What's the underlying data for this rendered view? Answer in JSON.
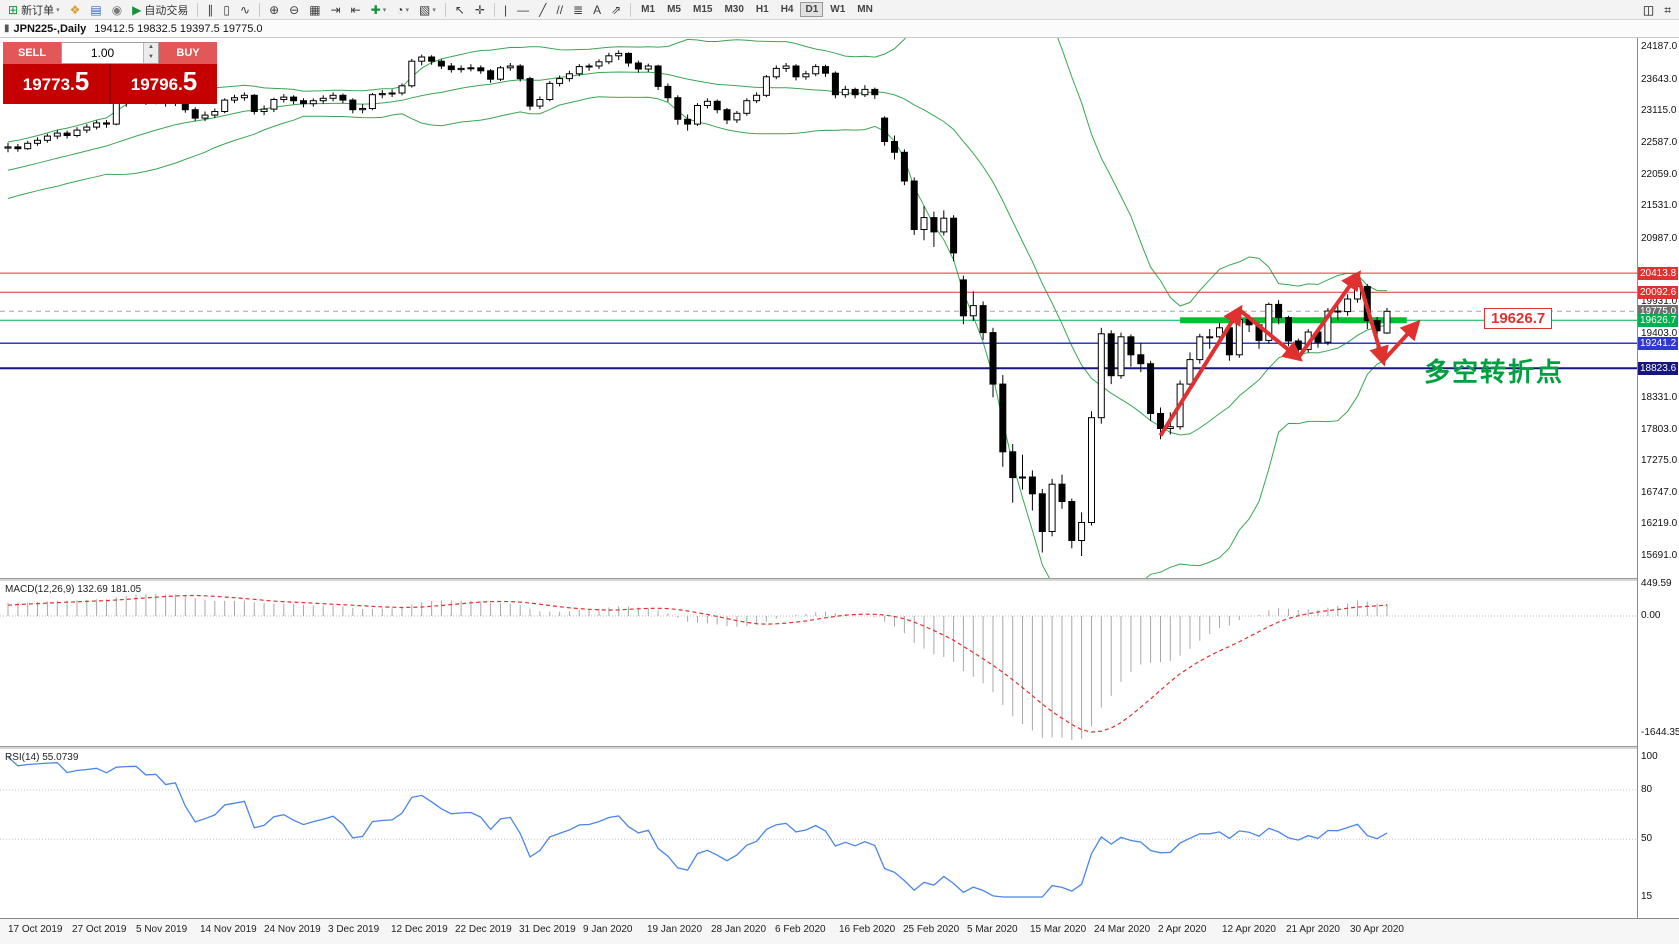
{
  "toolbar": {
    "items": [
      {
        "name": "new-order-button",
        "glyph": "⊞",
        "color": "#18923a",
        "label": "新订单",
        "dropdown": true
      },
      {
        "name": "profile-icon",
        "glyph": "❖",
        "color": "#d89a2b"
      },
      {
        "name": "market-watch-icon",
        "glyph": "▤",
        "color": "#2f66c4"
      },
      {
        "name": "signals-icon",
        "glyph": "◉",
        "color": "#7a7a7a"
      },
      {
        "name": "auto-trading-button",
        "glyph": "▶",
        "color": "#18923a",
        "label": "自动交易"
      },
      {
        "sep": true
      },
      {
        "name": "bar-chart-mode-button",
        "glyph": "∥"
      },
      {
        "name": "candlestick-mode-button",
        "glyph": "▯"
      },
      {
        "name": "line-chart-mode-button",
        "glyph": "∿"
      },
      {
        "sep": true
      },
      {
        "name": "zoom-in-button",
        "glyph": "⊕"
      },
      {
        "name": "zoom-out-button",
        "glyph": "⊖"
      },
      {
        "name": "tile-windows-button",
        "glyph": "▦"
      },
      {
        "name": "auto-scroll-button",
        "glyph": "⇥"
      },
      {
        "name": "chart-shift-button",
        "glyph": "⇤"
      },
      {
        "name": "indicators-button",
        "glyph": "✚",
        "color": "#18923a",
        "dropdown": true
      },
      {
        "name": "periods-button",
        "glyph": "◔",
        "dropdown": true
      },
      {
        "name": "templates-button",
        "glyph": "▧",
        "dropdown": true
      },
      {
        "sep": true
      },
      {
        "name": "cursor-button",
        "glyph": "↖"
      },
      {
        "name": "crosshair-button",
        "glyph": "✛"
      },
      {
        "sep": true
      },
      {
        "name": "vertical-line-button",
        "glyph": "|"
      },
      {
        "name": "horizontal-line-button",
        "glyph": "—"
      },
      {
        "name": "trendline-button",
        "glyph": "╱"
      },
      {
        "name": "channel-button",
        "glyph": "//"
      },
      {
        "name": "fibonacci-button",
        "glyph": "≣"
      },
      {
        "name": "text-label-button",
        "glyph": "A"
      },
      {
        "name": "arrows-button",
        "glyph": "⇗"
      },
      {
        "sep": true
      }
    ],
    "timeframes": [
      "M1",
      "M5",
      "M15",
      "M30",
      "H1",
      "H4",
      "D1",
      "W1",
      "MN"
    ],
    "active_timeframe": "D1",
    "right_items": [
      {
        "name": "data-window-icon",
        "glyph": "◫"
      },
      {
        "name": "toolbox-icon",
        "glyph": "⌗"
      }
    ],
    "dropdown_glyph": "▾"
  },
  "title_bar": {
    "icon_glyph": "▮",
    "symbol": "JPN225-,Daily",
    "ohlc": "19412.5 19832.5 19397.5 19775.0"
  },
  "order_panel": {
    "sell_label": "SELL",
    "buy_label": "BUY",
    "volume": "1.00",
    "sell_price": "19773.5",
    "buy_price": "19796.5",
    "spin_up_glyph": "▲",
    "spin_down_glyph": "▼"
  },
  "price_axis": {
    "labels": [
      "24187.0",
      "23643.0",
      "23115.0",
      "22587.0",
      "22059.0",
      "21531.0",
      "20987.0",
      "19931.0",
      "19403.0",
      "18331.0",
      "17803.0",
      "17275.0",
      "16747.0",
      "16219.0",
      "15691.0"
    ],
    "tags": [
      {
        "text": "20413.8",
        "price": 20413.8,
        "color": "#e03131"
      },
      {
        "text": "20092.6",
        "price": 20092.6,
        "color": "#e03131"
      },
      {
        "text": "19775.0",
        "price": 19775.0,
        "color": "#6f6f6f"
      },
      {
        "text": "19626.7",
        "price": 19626.7,
        "color": "#00b050"
      },
      {
        "text": "19241.2",
        "price": 19241.2,
        "color": "#2f39cf"
      },
      {
        "text": "18823.6",
        "price": 18823.6,
        "color": "#16167e"
      }
    ]
  },
  "hlines": [
    {
      "price": 20413.8,
      "color": "#e23030",
      "width": 1
    },
    {
      "price": 20092.6,
      "color": "#e23030",
      "width": 1
    },
    {
      "price": 19626.7,
      "color": "#00b050",
      "width": 1
    },
    {
      "price": 19241.2,
      "color": "#2f39cf",
      "width": 1.5
    },
    {
      "price": 18823.6,
      "color": "#16167e",
      "width": 2
    }
  ],
  "green_zone": {
    "price": 19626.7,
    "from_bar": 119,
    "to_bar": 142,
    "color": "#00c030",
    "thickness": 6
  },
  "annotations": {
    "price_label": {
      "text": "19626.7",
      "color": "#e03131"
    },
    "cn_note": {
      "text": "多空转折点",
      "color": "#00a040"
    },
    "zigzag": {
      "color": "#e03131",
      "points": [
        [
          117,
          17700
        ],
        [
          125,
          19800
        ],
        [
          131,
          19000
        ],
        [
          137,
          20380
        ],
        [
          139.6,
          18950
        ],
        [
          143,
          19560
        ]
      ]
    }
  },
  "x_axis": {
    "dates": [
      "17 Oct 2019",
      "27 Oct 2019",
      "5 Nov 2019",
      "14 Nov 2019",
      "24 Nov 2019",
      "3 Dec 2019",
      "12 Dec 2019",
      "22 Dec 2019",
      "31 Dec 2019",
      "9 Jan 2020",
      "19 Jan 2020",
      "28 Jan 2020",
      "6 Feb 2020",
      "16 Feb 2020",
      "25 Feb 2020",
      "5 Mar 2020",
      "15 Mar 2020",
      "24 Mar 2020",
      "2 Apr 2020",
      "12 Apr 2020",
      "21 Apr 2020",
      "30 Apr 2020"
    ]
  },
  "chart_data": {
    "type": "candlestick",
    "symbol": "JPN225",
    "period": "Daily",
    "title": "JPN225-,Daily",
    "last_ohlc": {
      "open": 19412.5,
      "high": 19832.5,
      "low": 19397.5,
      "close": 19775.0
    },
    "y_range": [
      15691,
      24187
    ],
    "overlays": {
      "bollinger": {
        "period": 20,
        "deviation": 2,
        "color": "#3aa655"
      }
    },
    "indicators": [
      {
        "name": "MACD",
        "params": [
          12,
          26,
          9
        ],
        "values": {
          "main": 132.69,
          "signal": 181.05
        },
        "scale": [
          -1644.35,
          449.59
        ]
      },
      {
        "name": "RSI",
        "params": [
          14
        ],
        "value": 55.0739,
        "scale": [
          15,
          100
        ],
        "levels": [
          80,
          50
        ]
      }
    ],
    "candles": [
      [
        22500,
        22590,
        22430,
        22520
      ],
      [
        22520,
        22570,
        22440,
        22490
      ],
      [
        22490,
        22620,
        22470,
        22580
      ],
      [
        22580,
        22680,
        22540,
        22630
      ],
      [
        22630,
        22740,
        22590,
        22700
      ],
      [
        22700,
        22800,
        22650,
        22750
      ],
      [
        22750,
        22790,
        22660,
        22710
      ],
      [
        22710,
        22850,
        22680,
        22800
      ],
      [
        22800,
        22900,
        22750,
        22850
      ],
      [
        22850,
        22960,
        22810,
        22920
      ],
      [
        22920,
        22970,
        22840,
        22900
      ],
      [
        22900,
        23290,
        22880,
        23250
      ],
      [
        23250,
        23350,
        23190,
        23300
      ],
      [
        23300,
        23380,
        23250,
        23330
      ],
      [
        23330,
        23360,
        23220,
        23280
      ],
      [
        23280,
        23370,
        23230,
        23310
      ],
      [
        23310,
        23340,
        23190,
        23250
      ],
      [
        23250,
        23350,
        23200,
        23300
      ],
      [
        23300,
        23330,
        23090,
        23140
      ],
      [
        23140,
        23180,
        22950,
        23000
      ],
      [
        23000,
        23110,
        22950,
        23050
      ],
      [
        23050,
        23160,
        23000,
        23110
      ],
      [
        23110,
        23330,
        23080,
        23300
      ],
      [
        23300,
        23390,
        23250,
        23340
      ],
      [
        23340,
        23430,
        23290,
        23380
      ],
      [
        23380,
        23400,
        23060,
        23110
      ],
      [
        23110,
        23210,
        23050,
        23150
      ],
      [
        23150,
        23340,
        23100,
        23310
      ],
      [
        23310,
        23400,
        23260,
        23350
      ],
      [
        23350,
        23380,
        23230,
        23290
      ],
      [
        23290,
        23330,
        23180,
        23240
      ],
      [
        23240,
        23330,
        23190,
        23290
      ],
      [
        23290,
        23380,
        23240,
        23330
      ],
      [
        23330,
        23430,
        23280,
        23380
      ],
      [
        23380,
        23410,
        23250,
        23300
      ],
      [
        23300,
        23330,
        23080,
        23140
      ],
      [
        23140,
        23230,
        23080,
        23160
      ],
      [
        23160,
        23420,
        23130,
        23390
      ],
      [
        23390,
        23470,
        23330,
        23410
      ],
      [
        23410,
        23480,
        23350,
        23420
      ],
      [
        23420,
        23580,
        23380,
        23540
      ],
      [
        23540,
        23990,
        23510,
        23950
      ],
      [
        23950,
        24060,
        23880,
        24020
      ],
      [
        24020,
        24050,
        23890,
        23950
      ],
      [
        23950,
        23980,
        23820,
        23870
      ],
      [
        23870,
        23920,
        23760,
        23810
      ],
      [
        23810,
        23880,
        23760,
        23830
      ],
      [
        23830,
        23900,
        23780,
        23840
      ],
      [
        23840,
        23880,
        23740,
        23790
      ],
      [
        23790,
        23820,
        23590,
        23650
      ],
      [
        23650,
        23870,
        23620,
        23840
      ],
      [
        23840,
        23920,
        23790,
        23870
      ],
      [
        23870,
        23900,
        23610,
        23660
      ],
      [
        23660,
        23690,
        23130,
        23200
      ],
      [
        23200,
        23360,
        23150,
        23310
      ],
      [
        23310,
        23620,
        23280,
        23580
      ],
      [
        23580,
        23710,
        23530,
        23660
      ],
      [
        23660,
        23790,
        23610,
        23740
      ],
      [
        23740,
        23900,
        23700,
        23860
      ],
      [
        23860,
        23910,
        23790,
        23870
      ],
      [
        23870,
        23980,
        23820,
        23940
      ],
      [
        23940,
        24090,
        23900,
        24040
      ],
      [
        24040,
        24130,
        23970,
        24080
      ],
      [
        24080,
        24100,
        23860,
        23920
      ],
      [
        23920,
        23960,
        23760,
        23820
      ],
      [
        23820,
        23910,
        23770,
        23870
      ],
      [
        23870,
        23890,
        23470,
        23530
      ],
      [
        23530,
        23580,
        23270,
        23340
      ],
      [
        23340,
        23380,
        22890,
        22980
      ],
      [
        22980,
        23060,
        22790,
        22900
      ],
      [
        22900,
        23250,
        22870,
        23210
      ],
      [
        23210,
        23330,
        23160,
        23280
      ],
      [
        23280,
        23310,
        23080,
        23140
      ],
      [
        23140,
        23170,
        22900,
        22970
      ],
      [
        22970,
        23120,
        22920,
        23080
      ],
      [
        23080,
        23330,
        23040,
        23290
      ],
      [
        23290,
        23430,
        23250,
        23380
      ],
      [
        23380,
        23720,
        23350,
        23690
      ],
      [
        23690,
        23880,
        23650,
        23830
      ],
      [
        23830,
        23920,
        23770,
        23870
      ],
      [
        23870,
        23900,
        23630,
        23690
      ],
      [
        23690,
        23790,
        23640,
        23740
      ],
      [
        23740,
        23900,
        23700,
        23860
      ],
      [
        23860,
        23890,
        23690,
        23750
      ],
      [
        23750,
        23780,
        23330,
        23390
      ],
      [
        23390,
        23540,
        23340,
        23480
      ],
      [
        23480,
        23510,
        23330,
        23390
      ],
      [
        23390,
        23550,
        23350,
        23480
      ],
      [
        23480,
        23510,
        23320,
        23390
      ],
      [
        23000,
        23030,
        22540,
        22610
      ],
      [
        22610,
        22710,
        22310,
        22430
      ],
      [
        22430,
        22480,
        21880,
        21950
      ],
      [
        21950,
        22010,
        21050,
        21140
      ],
      [
        21140,
        21530,
        20960,
        21340
      ],
      [
        21340,
        21440,
        20850,
        21100
      ],
      [
        21100,
        21460,
        21040,
        21330
      ],
      [
        21330,
        21380,
        20610,
        20750
      ],
      [
        20300,
        20370,
        19560,
        19700
      ],
      [
        19700,
        20110,
        19610,
        19870
      ],
      [
        19870,
        19940,
        19300,
        19420
      ],
      [
        19420,
        19500,
        18340,
        18560
      ],
      [
        18560,
        18710,
        17180,
        17430
      ],
      [
        17430,
        17560,
        16580,
        17000
      ],
      [
        17000,
        17380,
        16800,
        17010
      ],
      [
        17010,
        17120,
        16450,
        16730
      ],
      [
        16730,
        16810,
        15750,
        16100
      ],
      [
        16100,
        16980,
        16020,
        16890
      ],
      [
        16890,
        17050,
        16480,
        16600
      ],
      [
        16600,
        16650,
        15820,
        15950
      ],
      [
        15950,
        16420,
        15691,
        16250
      ],
      [
        16250,
        18110,
        16200,
        18000
      ],
      [
        18000,
        19500,
        17900,
        19400
      ],
      [
        19400,
        19460,
        18560,
        18700
      ],
      [
        18700,
        19420,
        18650,
        19350
      ],
      [
        19350,
        19390,
        18850,
        19050
      ],
      [
        19050,
        19250,
        18760,
        18900
      ],
      [
        18900,
        18950,
        17950,
        18070
      ],
      [
        18070,
        18170,
        17640,
        17820
      ],
      [
        17820,
        18090,
        17720,
        17850
      ],
      [
        17850,
        18620,
        17800,
        18560
      ],
      [
        18560,
        19090,
        18500,
        18970
      ],
      [
        18970,
        19400,
        18900,
        19350
      ],
      [
        19350,
        19480,
        19150,
        19350
      ],
      [
        19350,
        19580,
        19240,
        19500
      ],
      [
        19500,
        19520,
        18950,
        19050
      ],
      [
        19050,
        19700,
        19000,
        19640
      ],
      [
        19640,
        19720,
        19430,
        19550
      ],
      [
        19550,
        19580,
        19150,
        19290
      ],
      [
        19290,
        19920,
        19240,
        19890
      ],
      [
        19890,
        19960,
        19560,
        19670
      ],
      [
        19670,
        19700,
        19190,
        19280
      ],
      [
        19280,
        19320,
        19010,
        19140
      ],
      [
        19140,
        19480,
        19090,
        19430
      ],
      [
        19430,
        19460,
        19170,
        19260
      ],
      [
        19260,
        19830,
        19210,
        19780
      ],
      [
        19780,
        19870,
        19620,
        19770
      ],
      [
        19770,
        20060,
        19700,
        19980
      ],
      [
        19980,
        20420,
        19920,
        20190
      ],
      [
        20190,
        20230,
        19480,
        19620
      ],
      [
        19620,
        19680,
        19100,
        19450
      ],
      [
        19412.5,
        19832.5,
        19397.5,
        19775.0
      ]
    ]
  },
  "macd_panel": {
    "label": "MACD(12,26,9) 132.69 181.05",
    "axis_labels": [
      "449.59",
      "0.00",
      "-1644.35"
    ],
    "histogram_color": "#a8a8a8",
    "signal_color": "#e03131"
  },
  "rsi_panel": {
    "label": "RSI(14) 55.0739",
    "axis_labels": [
      "100",
      "80",
      "50",
      "15"
    ],
    "levels": [
      80,
      50
    ],
    "line_color": "#4a86e8",
    "range": [
      15,
      100
    ]
  }
}
